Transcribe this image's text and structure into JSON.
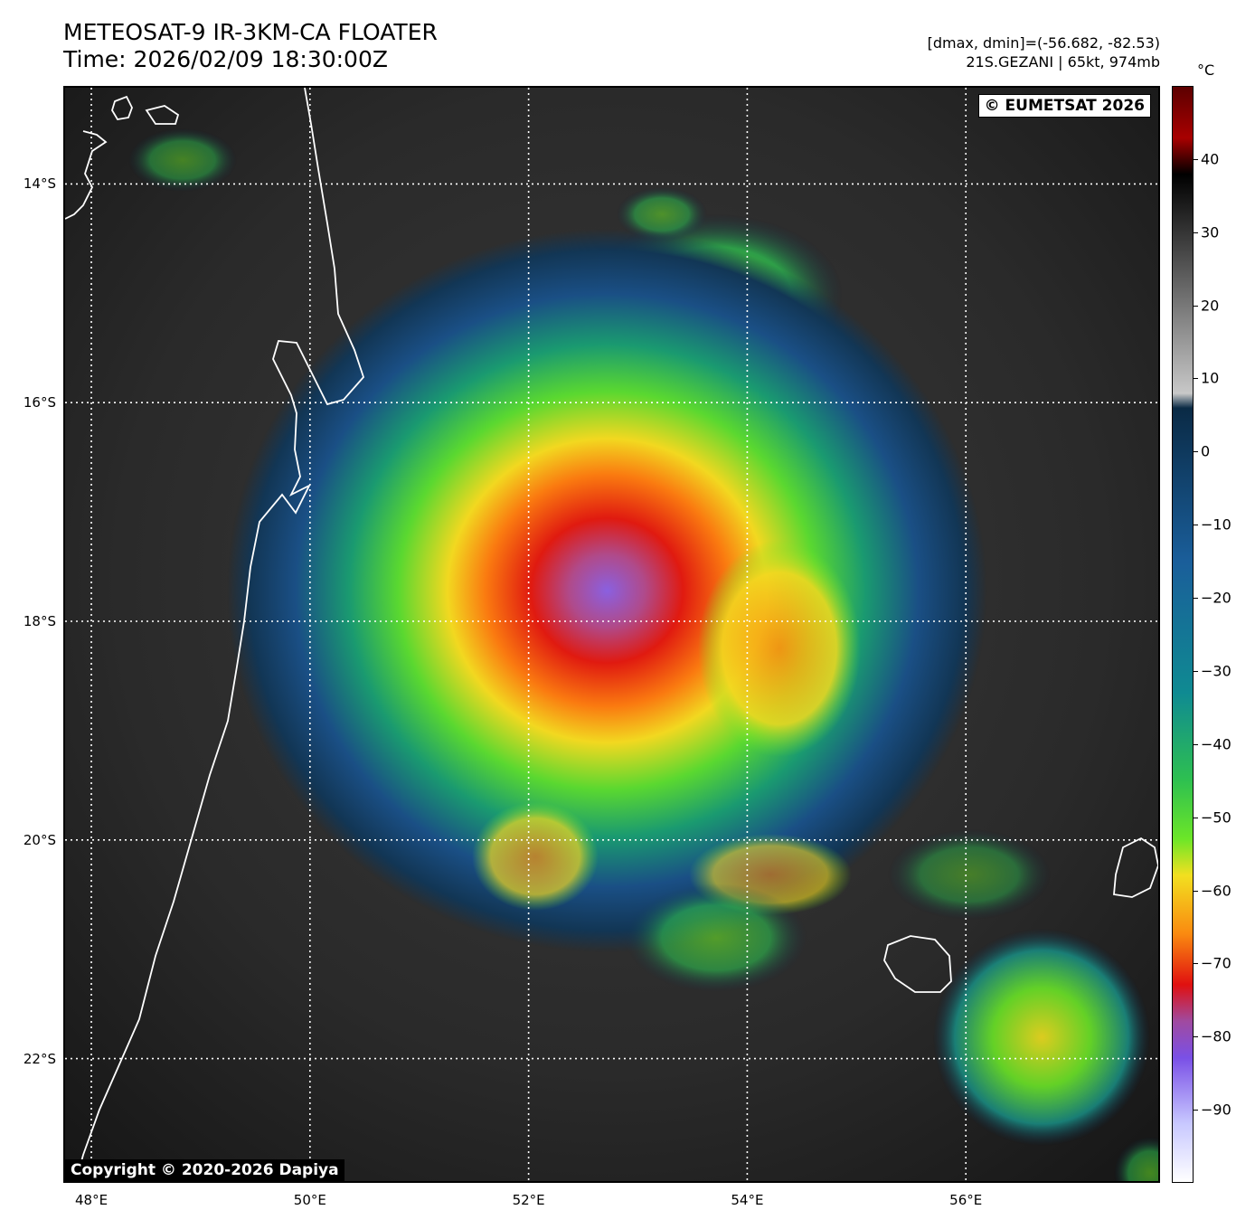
{
  "header": {
    "title_line1": "METEOSAT-9 IR-3KM-CA FLOATER",
    "title_line2": "Time: 2026/02/09 18:30:00Z",
    "info_line1": "[dmax, dmin]=(-56.682, -82.53)",
    "info_line2": "21S.GEZANI | 65kt, 974mb"
  },
  "map": {
    "eumetsat_copyright": "© EUMETSAT 2026",
    "dapiya_copyright": "Copyright © 2020-2026 Dapiya",
    "lat_labels": [
      "14°S",
      "16°S",
      "18°S",
      "20°S",
      "22°S"
    ],
    "lon_labels": [
      "48°E",
      "50°E",
      "52°E",
      "54°E",
      "56°E"
    ],
    "lat_values": [
      -14,
      -16,
      -18,
      -20,
      -22
    ],
    "lon_values": [
      48,
      50,
      52,
      54,
      56
    ],
    "extent": {
      "lon_min": 47.76,
      "lon_max": 57.76,
      "lat_max": -13.12,
      "lat_min": -23.12
    },
    "storm_center": {
      "lon": 52.8,
      "lat": -18.05
    },
    "coast_color": "#ffffff",
    "grid_color": "#ffffff"
  },
  "colorbar": {
    "unit": "°C",
    "tick_labels": [
      "40",
      "30",
      "20",
      "10",
      "0",
      "−10",
      "−20",
      "−30",
      "−40",
      "−50",
      "−60",
      "−70",
      "−80",
      "−90"
    ],
    "tick_values": [
      40,
      30,
      20,
      10,
      0,
      -10,
      -20,
      -30,
      -40,
      -50,
      -60,
      -70,
      -80,
      -90
    ],
    "range": [
      -100,
      50
    ],
    "stops": [
      {
        "value": 50,
        "color": "#5c0000"
      },
      {
        "value": 43,
        "color": "#a80000"
      },
      {
        "value": 38,
        "color": "#000000"
      },
      {
        "value": 8,
        "color": "#c8c8c8"
      },
      {
        "value": 6,
        "color": "#0a2a45"
      },
      {
        "value": -15,
        "color": "#1a5e9a"
      },
      {
        "value": -33,
        "color": "#0f8a92"
      },
      {
        "value": -45,
        "color": "#2ec050"
      },
      {
        "value": -53,
        "color": "#6ce628"
      },
      {
        "value": -58,
        "color": "#f2e020"
      },
      {
        "value": -66,
        "color": "#fa8a10"
      },
      {
        "value": -73,
        "color": "#e01010"
      },
      {
        "value": -78,
        "color": "#a04aa0"
      },
      {
        "value": -83,
        "color": "#7a50e6"
      },
      {
        "value": -92,
        "color": "#c8c8ff"
      },
      {
        "value": -100,
        "color": "#ffffff"
      }
    ]
  }
}
